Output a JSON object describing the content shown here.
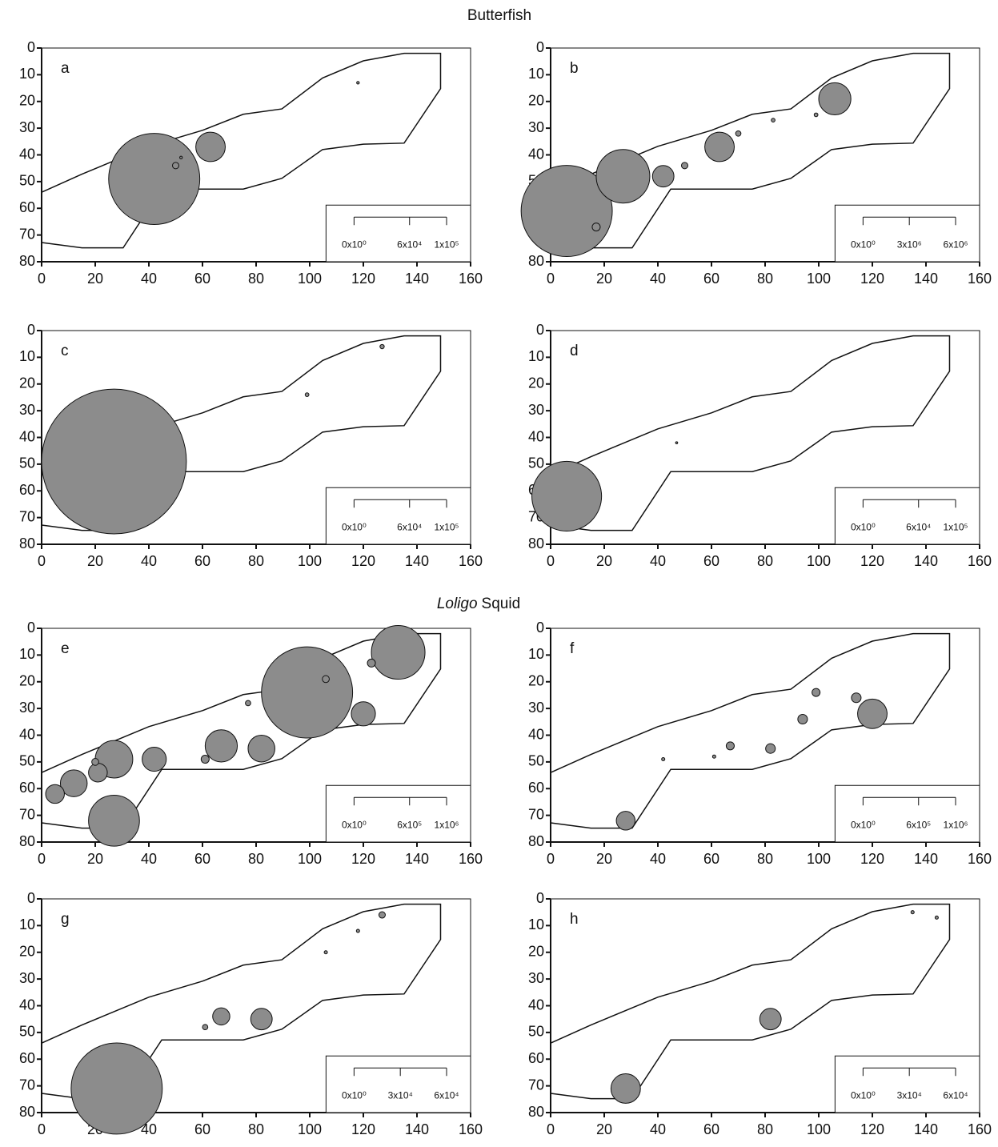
{
  "section_titles": [
    {
      "title": "Butterfish"
    },
    {
      "title_italic": "Loligo",
      "title": "Squid"
    }
  ],
  "chart_data": [
    {
      "type": "bubble",
      "label": "a",
      "color": "#8c8c8c",
      "xlim": [
        0,
        160
      ],
      "ylim": [
        0,
        80
      ],
      "y_inverted": true,
      "xticks": [
        0,
        20,
        40,
        60,
        80,
        100,
        120,
        140,
        160
      ],
      "yticks": [
        0,
        10,
        20,
        30,
        40,
        50,
        60,
        70,
        80
      ],
      "points": {
        "x": [
          42,
          63,
          50,
          52,
          118
        ],
        "y": [
          49,
          37,
          44,
          41,
          13
        ],
        "size": [
          17,
          5.5,
          1.2,
          0.5,
          0.5
        ]
      },
      "legend_ticks": [
        {
          "value": 0,
          "label": "0x10⁰"
        },
        {
          "value": 60000,
          "label": "6x10⁴"
        },
        {
          "value": 100000,
          "label": "1x10⁵"
        }
      ]
    },
    {
      "type": "bubble",
      "label": "b",
      "color": "#8c8c8c",
      "xlim": [
        0,
        160
      ],
      "ylim": [
        0,
        80
      ],
      "y_inverted": true,
      "xticks": [
        0,
        20,
        40,
        60,
        80,
        100,
        120,
        140,
        160
      ],
      "yticks": [
        0,
        10,
        20,
        30,
        40,
        50,
        60,
        70,
        80
      ],
      "points": {
        "x": [
          6,
          27,
          42,
          63,
          106,
          17,
          50,
          70,
          83,
          99
        ],
        "y": [
          61,
          48,
          48,
          37,
          19,
          67,
          44,
          32,
          27,
          25
        ],
        "size": [
          17,
          10,
          4,
          5.5,
          6,
          1.5,
          1.2,
          1,
          0.7,
          0.7
        ]
      },
      "legend_ticks": [
        {
          "value": 0,
          "label": "0x10⁰"
        },
        {
          "value": 3000000,
          "label": "3x10⁶"
        },
        {
          "value": 6000000,
          "label": "6x10⁶"
        }
      ]
    },
    {
      "type": "bubble",
      "label": "c",
      "color": "#8c8c8c",
      "xlim": [
        0,
        160
      ],
      "ylim": [
        0,
        80
      ],
      "y_inverted": true,
      "xticks": [
        0,
        20,
        40,
        60,
        80,
        100,
        120,
        140,
        160
      ],
      "yticks": [
        0,
        10,
        20,
        30,
        40,
        50,
        60,
        70,
        80
      ],
      "points": {
        "x": [
          27,
          127,
          99
        ],
        "y": [
          49,
          6,
          24
        ],
        "size": [
          27,
          0.8,
          0.7
        ]
      },
      "legend_ticks": [
        {
          "value": 0,
          "label": "0x10⁰"
        },
        {
          "value": 60000,
          "label": "6x10⁴"
        },
        {
          "value": 100000,
          "label": "1x10⁵"
        }
      ]
    },
    {
      "type": "bubble",
      "label": "d",
      "color": "#8c8c8c",
      "xlim": [
        0,
        160
      ],
      "ylim": [
        0,
        80
      ],
      "y_inverted": true,
      "xticks": [
        0,
        20,
        40,
        60,
        80,
        100,
        120,
        140,
        160
      ],
      "yticks": [
        0,
        10,
        20,
        30,
        40,
        50,
        60,
        70,
        80
      ],
      "points": {
        "x": [
          6,
          47
        ],
        "y": [
          62,
          42
        ],
        "size": [
          13,
          0.4
        ]
      },
      "legend_ticks": [
        {
          "value": 0,
          "label": "0x10⁰"
        },
        {
          "value": 60000,
          "label": "6x10⁴"
        },
        {
          "value": 100000,
          "label": "1x10⁵"
        }
      ]
    },
    {
      "type": "bubble",
      "label": "e",
      "color": "#8c8c8c",
      "xlim": [
        0,
        160
      ],
      "ylim": [
        0,
        80
      ],
      "y_inverted": true,
      "xticks": [
        0,
        20,
        40,
        60,
        80,
        100,
        120,
        140,
        160
      ],
      "yticks": [
        0,
        10,
        20,
        30,
        40,
        50,
        60,
        70,
        80
      ],
      "points": {
        "x": [
          99,
          133,
          27,
          27,
          67,
          82,
          42,
          120,
          12,
          5,
          21,
          123,
          106,
          61,
          20,
          77
        ],
        "y": [
          24,
          9,
          72,
          49,
          44,
          45,
          49,
          32,
          58,
          62,
          54,
          13,
          19,
          49,
          50,
          28
        ],
        "size": [
          17,
          10,
          9.5,
          7,
          6,
          5,
          4.5,
          4.5,
          5,
          3.5,
          3.5,
          1.5,
          1.3,
          1.5,
          1.3,
          1
        ]
      },
      "legend_ticks": [
        {
          "value": 0,
          "label": "0x10⁰"
        },
        {
          "value": 600000,
          "label": "6x10⁵"
        },
        {
          "value": 1000000,
          "label": "1x10⁶"
        }
      ]
    },
    {
      "type": "bubble",
      "label": "f",
      "color": "#8c8c8c",
      "xlim": [
        0,
        160
      ],
      "ylim": [
        0,
        80
      ],
      "y_inverted": true,
      "xticks": [
        0,
        20,
        40,
        60,
        80,
        100,
        120,
        140,
        160
      ],
      "yticks": [
        0,
        10,
        20,
        30,
        40,
        50,
        60,
        70,
        80
      ],
      "points": {
        "x": [
          120,
          28,
          67,
          82,
          94,
          99,
          114,
          61,
          42
        ],
        "y": [
          32,
          72,
          44,
          45,
          34,
          24,
          26,
          48,
          49
        ],
        "size": [
          5.5,
          3.5,
          1.5,
          1.8,
          1.8,
          1.5,
          1.8,
          0.6,
          0.6
        ]
      },
      "legend_ticks": [
        {
          "value": 0,
          "label": "0x10⁰"
        },
        {
          "value": 600000,
          "label": "6x10⁵"
        },
        {
          "value": 1000000,
          "label": "1x10⁶"
        }
      ]
    },
    {
      "type": "bubble",
      "label": "g",
      "color": "#8c8c8c",
      "xlim": [
        0,
        160
      ],
      "ylim": [
        0,
        80
      ],
      "y_inverted": true,
      "xticks": [
        0,
        20,
        40,
        60,
        80,
        100,
        120,
        140,
        160
      ],
      "yticks": [
        0,
        10,
        20,
        30,
        40,
        50,
        60,
        70,
        80
      ],
      "points": {
        "x": [
          28,
          67,
          82,
          127,
          61,
          106,
          118
        ],
        "y": [
          71,
          44,
          45,
          6,
          48,
          20,
          12
        ],
        "size": [
          17,
          3.2,
          4,
          1.2,
          1,
          0.6,
          0.6
        ]
      },
      "legend_ticks": [
        {
          "value": 0,
          "label": "0x10⁰"
        },
        {
          "value": 30000,
          "label": "3x10⁴"
        },
        {
          "value": 60000,
          "label": "6x10⁴"
        }
      ]
    },
    {
      "type": "bubble",
      "label": "h",
      "color": "#8c8c8c",
      "xlim": [
        0,
        160
      ],
      "ylim": [
        0,
        80
      ],
      "y_inverted": true,
      "xticks": [
        0,
        20,
        40,
        60,
        80,
        100,
        120,
        140,
        160
      ],
      "yticks": [
        0,
        10,
        20,
        30,
        40,
        50,
        60,
        70,
        80
      ],
      "points": {
        "x": [
          28,
          82,
          135,
          144
        ],
        "y": [
          71,
          45,
          5,
          7
        ],
        "size": [
          5.5,
          4,
          0.6,
          0.6
        ]
      },
      "legend_ticks": [
        {
          "value": 0,
          "label": "0x10⁰"
        },
        {
          "value": 30000,
          "label": "3x10⁴"
        },
        {
          "value": 60000,
          "label": "6x10⁴"
        }
      ]
    }
  ]
}
